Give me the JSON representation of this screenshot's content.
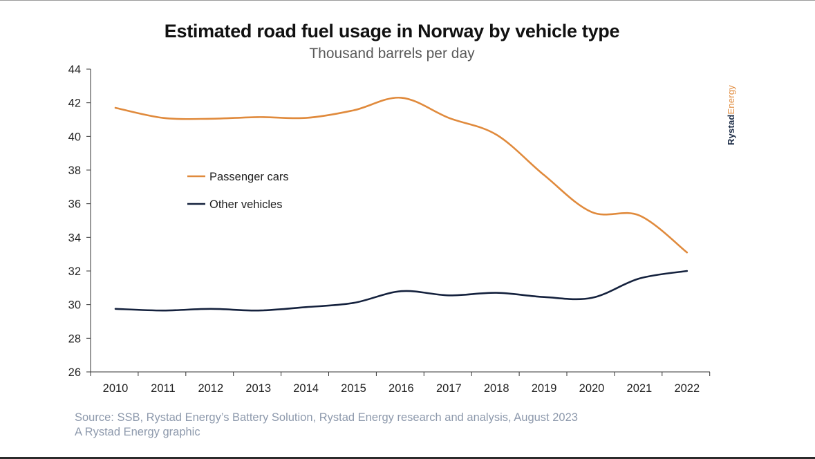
{
  "brand": {
    "part1": "Rystad",
    "part2": "Energy"
  },
  "footer": {
    "source": "Source: SSB, Rystad Energy’s Battery Solution, Rystad Energy research and analysis, August 2023",
    "credit": "A Rystad Energy graphic"
  },
  "chart_data": {
    "type": "line",
    "title": "Estimated road fuel usage in Norway by vehicle type",
    "subtitle": "Thousand barrels per day",
    "xlabel": "",
    "ylabel": "",
    "categories": [
      "2010",
      "2011",
      "2012",
      "2013",
      "2014",
      "2015",
      "2016",
      "2017",
      "2018",
      "2019",
      "2020",
      "2021",
      "2022"
    ],
    "ylim": [
      26,
      44
    ],
    "yticks": [
      26,
      28,
      30,
      32,
      34,
      36,
      38,
      40,
      42,
      44
    ],
    "grid": false,
    "legend_position": "upper-left",
    "series": [
      {
        "name": "Passenger cars",
        "color": "#e08a3c",
        "values": [
          41.7,
          41.1,
          41.05,
          41.15,
          41.1,
          41.55,
          42.3,
          41.1,
          40.1,
          37.7,
          35.5,
          35.3,
          33.1
        ]
      },
      {
        "name": "Other vehicles",
        "color": "#14213d",
        "values": [
          29.75,
          29.65,
          29.75,
          29.65,
          29.85,
          30.1,
          30.8,
          30.55,
          30.7,
          30.45,
          30.4,
          31.55,
          32.0
        ]
      }
    ]
  }
}
